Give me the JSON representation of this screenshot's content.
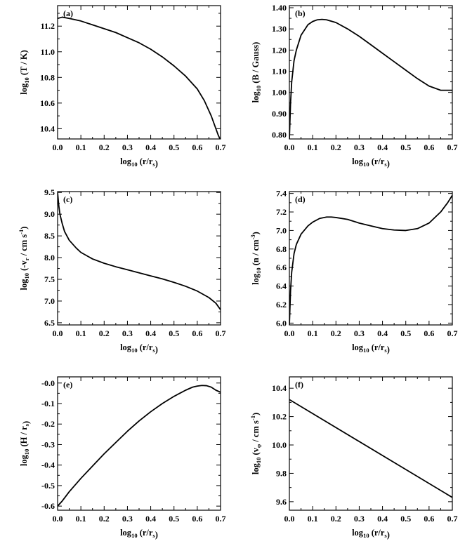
{
  "chart_data": [
    {
      "type": "line",
      "panel_label": "(a)",
      "xlabel": {
        "main": "log",
        "sub": "10",
        "rest": " (r/r",
        "sub2": "s",
        "tail": ")"
      },
      "ylabel": {
        "main": "log",
        "sub": "10",
        "rest": " (T / K)",
        "sup": "",
        "tail": ""
      },
      "xlim": [
        0.0,
        0.7
      ],
      "ylim": [
        10.32,
        11.36
      ],
      "xticks": [
        "0.0",
        "0.1",
        "0.2",
        "0.3",
        "0.4",
        "0.5",
        "0.6",
        "0.7"
      ],
      "yticks": [
        "10.4",
        "10.6",
        "10.8",
        "11.0",
        "11.2"
      ],
      "grid": false,
      "series": [
        {
          "x": [
            0.0,
            0.02,
            0.05,
            0.1,
            0.15,
            0.2,
            0.25,
            0.3,
            0.35,
            0.4,
            0.45,
            0.5,
            0.55,
            0.6,
            0.63,
            0.66,
            0.69,
            0.7
          ],
          "y": [
            11.26,
            11.27,
            11.26,
            11.24,
            11.21,
            11.18,
            11.15,
            11.11,
            11.07,
            11.02,
            10.96,
            10.89,
            10.81,
            10.71,
            10.62,
            10.5,
            10.35,
            10.31
          ]
        }
      ]
    },
    {
      "type": "line",
      "panel_label": "(b)",
      "xlabel": {
        "main": "log",
        "sub": "10",
        "rest": " (r/r",
        "sub2": "s",
        "tail": ")"
      },
      "ylabel": {
        "main": "log",
        "sub": "10",
        "rest": " (B / Gauss)",
        "sup": "",
        "tail": ""
      },
      "xlim": [
        0.0,
        0.7
      ],
      "ylim": [
        0.78,
        1.41
      ],
      "xticks": [
        "0.0",
        "0.1",
        "0.2",
        "0.3",
        "0.4",
        "0.5",
        "0.6",
        "0.7"
      ],
      "yticks": [
        "0.80",
        "0.90",
        "1.00",
        "1.10",
        "1.20",
        "1.30",
        "1.40"
      ],
      "grid": false,
      "series": [
        {
          "x": [
            0.0,
            0.005,
            0.01,
            0.02,
            0.03,
            0.05,
            0.08,
            0.1,
            0.12,
            0.14,
            0.16,
            0.2,
            0.25,
            0.3,
            0.35,
            0.4,
            0.45,
            0.5,
            0.55,
            0.6,
            0.65,
            0.7
          ],
          "y": [
            0.78,
            0.95,
            1.05,
            1.15,
            1.2,
            1.27,
            1.32,
            1.335,
            1.343,
            1.345,
            1.343,
            1.33,
            1.3,
            1.265,
            1.225,
            1.185,
            1.145,
            1.105,
            1.065,
            1.03,
            1.01,
            1.01
          ]
        }
      ]
    },
    {
      "type": "line",
      "panel_label": "(c)",
      "xlabel": {
        "main": "log",
        "sub": "10",
        "rest": " (r/r",
        "sub2": "s",
        "tail": ")"
      },
      "ylabel": {
        "main": "log",
        "sub": "10",
        "rest": " (-v",
        "sub2": "r",
        "rest2": " / cm s",
        "sup": "-1",
        "tail": ")"
      },
      "xlim": [
        0.0,
        0.7
      ],
      "ylim": [
        6.45,
        9.52
      ],
      "xticks": [
        "0.0",
        "0.1",
        "0.2",
        "0.3",
        "0.4",
        "0.5",
        "0.6",
        "0.7"
      ],
      "yticks": [
        "6.5",
        "7.0",
        "7.5",
        "8.0",
        "8.5",
        "9.0",
        "9.5"
      ],
      "grid": false,
      "series": [
        {
          "x": [
            0.0,
            0.005,
            0.01,
            0.02,
            0.03,
            0.05,
            0.08,
            0.1,
            0.15,
            0.2,
            0.25,
            0.3,
            0.35,
            0.4,
            0.45,
            0.5,
            0.55,
            0.6,
            0.65,
            0.68,
            0.7
          ],
          "y": [
            9.5,
            9.2,
            9.0,
            8.78,
            8.6,
            8.4,
            8.22,
            8.12,
            7.97,
            7.87,
            7.79,
            7.72,
            7.65,
            7.58,
            7.51,
            7.43,
            7.34,
            7.23,
            7.08,
            6.95,
            6.8
          ]
        }
      ]
    },
    {
      "type": "line",
      "panel_label": "(d)",
      "xlabel": {
        "main": "log",
        "sub": "10",
        "rest": " (r/r",
        "sub2": "s",
        "tail": ")"
      },
      "ylabel": {
        "main": "log",
        "sub": "10",
        "rest": " (n / cm",
        "sup": "-3",
        "tail": ")"
      },
      "xlim": [
        0.0,
        0.7
      ],
      "ylim": [
        5.98,
        7.42
      ],
      "xticks": [
        "0.0",
        "0.1",
        "0.2",
        "0.3",
        "0.4",
        "0.5",
        "0.6",
        "0.7"
      ],
      "yticks": [
        "6.0",
        "6.2",
        "6.4",
        "6.6",
        "6.8",
        "7.0",
        "7.2",
        "7.4"
      ],
      "grid": false,
      "series": [
        {
          "x": [
            0.0,
            0.005,
            0.01,
            0.02,
            0.03,
            0.05,
            0.08,
            0.1,
            0.13,
            0.16,
            0.18,
            0.2,
            0.25,
            0.3,
            0.35,
            0.4,
            0.45,
            0.5,
            0.55,
            0.6,
            0.65,
            0.68,
            0.7
          ],
          "y": [
            5.98,
            6.35,
            6.55,
            6.75,
            6.85,
            6.96,
            7.05,
            7.09,
            7.13,
            7.145,
            7.145,
            7.14,
            7.12,
            7.08,
            7.05,
            7.02,
            7.005,
            7.0,
            7.02,
            7.08,
            7.2,
            7.3,
            7.38
          ]
        }
      ]
    },
    {
      "type": "line",
      "panel_label": "(e)",
      "xlabel": {
        "main": "log",
        "sub": "10",
        "rest": " (r/r",
        "sub2": "s",
        "tail": ")"
      },
      "ylabel": {
        "main": "log",
        "sub": "10",
        "rest": " (H / r",
        "sub2": "s",
        "tail": ")"
      },
      "xlim": [
        0.0,
        0.7
      ],
      "ylim": [
        -0.62,
        0.03
      ],
      "xticks": [
        "0.0",
        "0.1",
        "0.2",
        "0.3",
        "0.4",
        "0.5",
        "0.6",
        "0.7"
      ],
      "yticks": [
        "-0.6",
        "-0.5",
        "-0.4",
        "-0.3",
        "-0.2",
        "-0.1",
        "-0.0"
      ],
      "grid": false,
      "series": [
        {
          "x": [
            0.0,
            0.02,
            0.05,
            0.1,
            0.15,
            0.2,
            0.25,
            0.3,
            0.35,
            0.4,
            0.45,
            0.5,
            0.55,
            0.58,
            0.6,
            0.62,
            0.64,
            0.66,
            0.68,
            0.7
          ],
          "y": [
            -0.6,
            -0.575,
            -0.53,
            -0.465,
            -0.405,
            -0.345,
            -0.29,
            -0.235,
            -0.185,
            -0.14,
            -0.1,
            -0.065,
            -0.035,
            -0.02,
            -0.015,
            -0.012,
            -0.013,
            -0.02,
            -0.035,
            -0.045
          ]
        }
      ]
    },
    {
      "type": "line",
      "panel_label": "(f)",
      "xlabel": {
        "main": "log",
        "sub": "10",
        "rest": " (r/r",
        "sub2": "s",
        "tail": ")"
      },
      "ylabel": {
        "main": "log",
        "sub": "10",
        "rest": " (v",
        "sub2": "φ",
        "rest2": " / cm s",
        "sup": "-1",
        "tail": ")"
      },
      "xlim": [
        0.0,
        0.7
      ],
      "ylim": [
        9.54,
        10.48
      ],
      "xticks": [
        "0.0",
        "0.1",
        "0.2",
        "0.3",
        "0.4",
        "0.5",
        "0.6",
        "0.7"
      ],
      "yticks": [
        "9.6",
        "9.8",
        "10.0",
        "10.2",
        "10.4"
      ],
      "grid": false,
      "series": [
        {
          "x": [
            0.0,
            0.7
          ],
          "y": [
            10.32,
            9.63
          ]
        }
      ]
    }
  ]
}
